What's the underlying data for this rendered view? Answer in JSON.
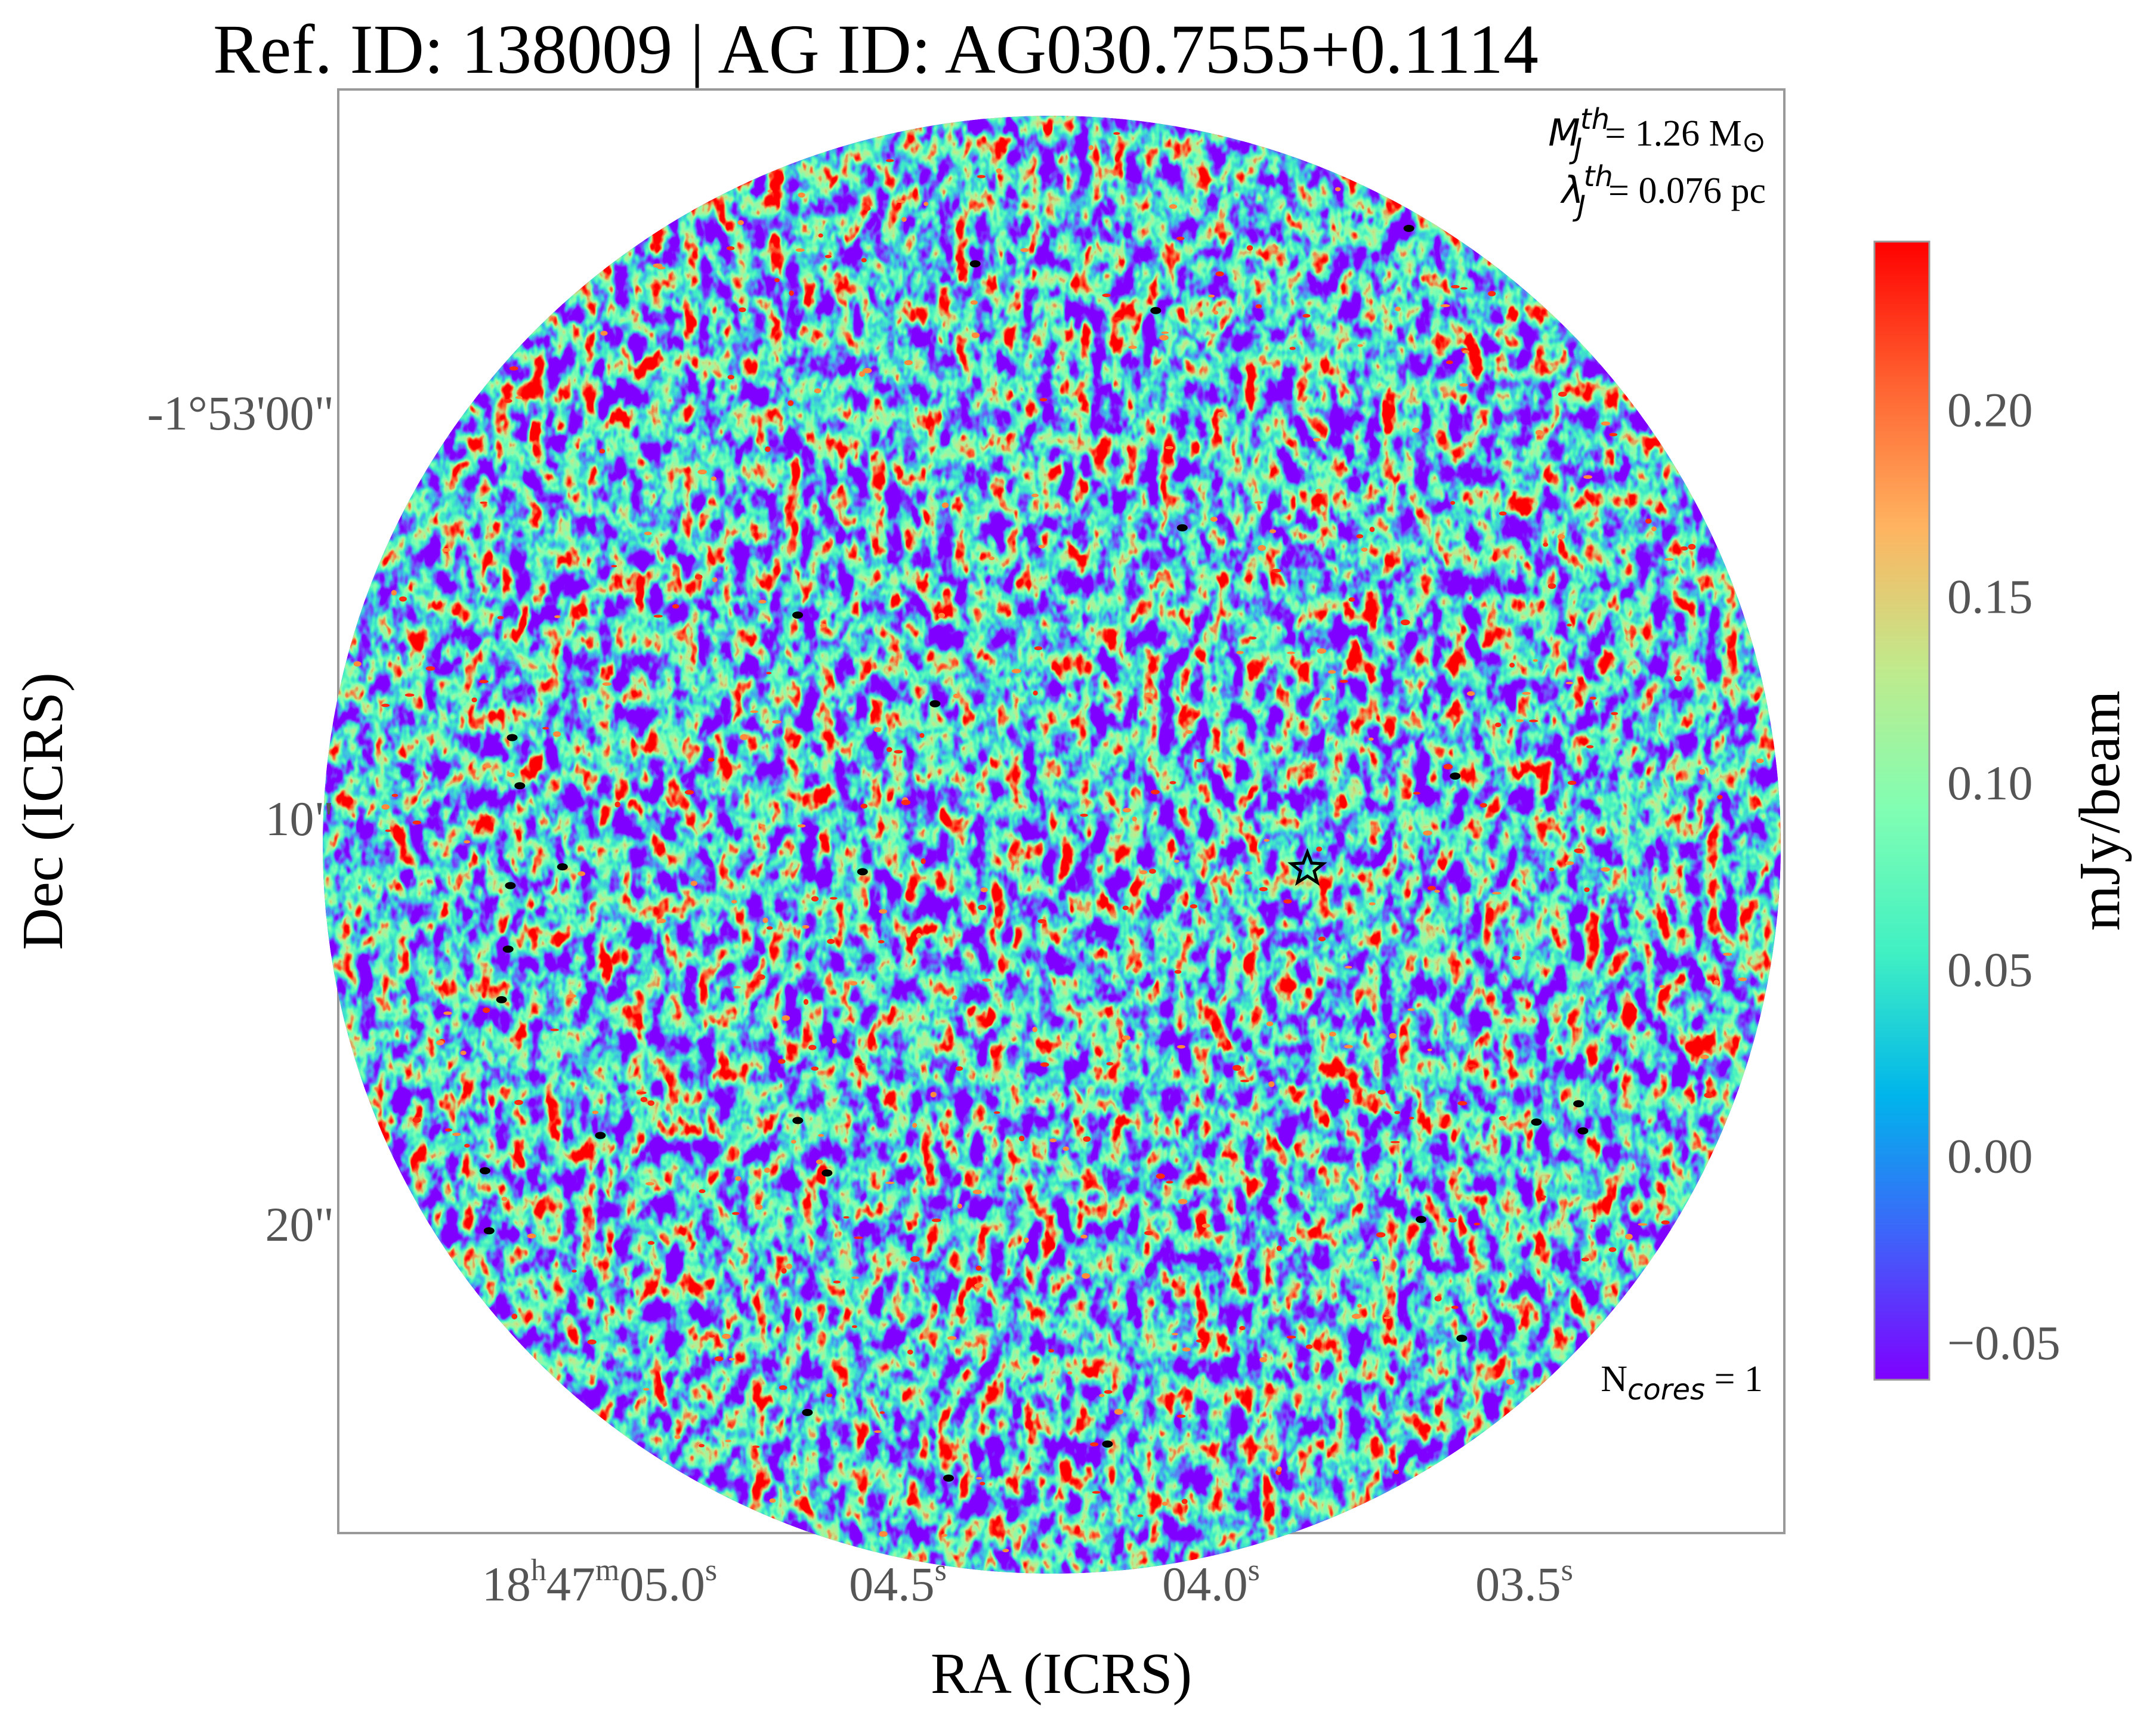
{
  "chart_data": {
    "type": "heatmap",
    "title": "Ref. ID: 138009 | AG ID: AG030.7555+0.1114",
    "xlabel": "RA (ICRS)",
    "ylabel": "Dec (ICRS)",
    "x_ticks": [
      {
        "h": "18",
        "m": "47",
        "s": "05.0"
      },
      {
        "h": "",
        "m": "",
        "s": "04.5"
      },
      {
        "h": "",
        "m": "",
        "s": "04.0"
      },
      {
        "h": "",
        "m": "",
        "s": "03.5"
      }
    ],
    "x_ticks_sup": {
      "h": "h",
      "m": "m",
      "s": "s"
    },
    "y_ticks": [
      "-1°53'00\"",
      "10\"",
      "20\""
    ],
    "colorbar": {
      "label": "mJy/beam",
      "range": [
        -0.06,
        0.245
      ],
      "ticks": [
        "0.20",
        "0.15",
        "0.10",
        "0.05",
        "0.00",
        "−0.05"
      ],
      "tick_values": [
        0.2,
        0.15,
        0.1,
        0.05,
        0.0,
        -0.05
      ],
      "colormap": "rainbow",
      "colors": [
        "#7f00ff",
        "#3f62fa",
        "#00b5eb",
        "#40f0c3",
        "#80feb3",
        "#c0ea8c",
        "#ffb360",
        "#ff6230",
        "#ff0000"
      ]
    },
    "annotations": {
      "mj_symbol": "M",
      "mj_sub": "J",
      "mj_sup": "th",
      "mj_value": "= 1.26 M",
      "mj_sun": "⊙",
      "lj_symbol": "λ",
      "lj_sub": "J",
      "lj_sup": "th",
      "lj_value": "= 0.076 pc",
      "ncores_prefix": "N",
      "ncores_sub": "cores",
      "ncores_value": " = 1"
    },
    "markers": [
      {
        "type": "star",
        "ra_s": 3.87,
        "dec_offset_arcsec": 11.2
      }
    ],
    "grid": false
  }
}
